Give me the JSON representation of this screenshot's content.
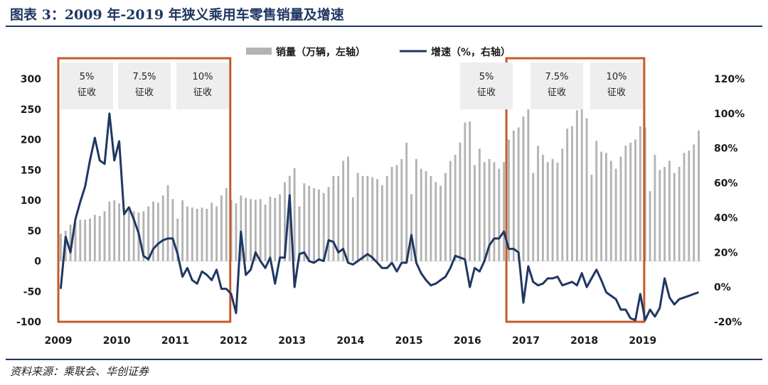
{
  "title": "图表 3：2009 年-2019 年狭义乘用车零售销量及增速",
  "source": "资料来源：乘联会、华创证券",
  "colors": {
    "bar": "#b3b3b3",
    "line": "#1f3763",
    "box": "#c55a2b",
    "ann_bg": "#eeeeee",
    "rule": "#1f3763"
  },
  "chart_data": {
    "type": "bar+line",
    "legend": [
      "销量（万辆，左轴）",
      "增速（%，右轴）"
    ],
    "x_labels": [
      "2009",
      "2010",
      "2011",
      "2012",
      "2013",
      "2014",
      "2015",
      "2016",
      "2017",
      "2018",
      "2019"
    ],
    "y_left": {
      "min": -100,
      "max": 300,
      "ticks": [
        "300",
        "250",
        "200",
        "150",
        "100",
        "50",
        "0",
        "-50",
        "-100"
      ]
    },
    "y_right": {
      "min": -20,
      "max": 120,
      "ticks": [
        "120%",
        "100%",
        "80%",
        "60%",
        "40%",
        "20%",
        "0%",
        "-20%"
      ]
    },
    "sales": [
      45,
      50,
      60,
      65,
      68,
      68,
      70,
      76,
      74,
      82,
      98,
      100,
      95,
      87,
      85,
      82,
      80,
      82,
      90,
      98,
      96,
      108,
      125,
      102,
      70,
      100,
      90,
      88,
      86,
      88,
      86,
      96,
      90,
      108,
      120,
      100,
      95,
      108,
      104,
      102,
      101,
      102,
      93,
      106,
      104,
      110,
      130,
      140,
      153,
      90,
      128,
      124,
      120,
      118,
      112,
      122,
      140,
      140,
      165,
      172,
      105,
      145,
      140,
      140,
      138,
      135,
      125,
      140,
      155,
      158,
      168,
      195,
      110,
      168,
      152,
      148,
      140,
      130,
      124,
      145,
      165,
      175,
      195,
      228,
      230,
      158,
      185,
      163,
      168,
      163,
      152,
      163,
      200,
      215,
      220,
      238,
      250,
      145,
      190,
      175,
      163,
      168,
      162,
      185,
      218,
      222,
      248,
      275,
      235,
      142,
      198,
      180,
      178,
      165,
      152,
      172,
      190,
      195,
      200,
      222,
      220,
      115,
      175,
      150,
      155,
      165,
      145,
      155,
      178,
      182,
      192,
      215
    ],
    "growth": [
      -1,
      29,
      20,
      39,
      49,
      58,
      73,
      86,
      73,
      71,
      100,
      73,
      84,
      42,
      46,
      39,
      31,
      18,
      16,
      22,
      25,
      27,
      28,
      28,
      19,
      6,
      11,
      4,
      2,
      9,
      7,
      4,
      10,
      -1,
      -1,
      -4,
      -15,
      32,
      7,
      10,
      20,
      15,
      11,
      17,
      2,
      17,
      17,
      53,
      0,
      19,
      20,
      15,
      14,
      16,
      15,
      27,
      26,
      20,
      22,
      14,
      13,
      15,
      17,
      19,
      17,
      14,
      11,
      11,
      14,
      9,
      14,
      14,
      30,
      14,
      8,
      4,
      1,
      2,
      4,
      6,
      11,
      18,
      17,
      16,
      0,
      11,
      9,
      15,
      24,
      28,
      28,
      32,
      22,
      22,
      20,
      -9,
      12,
      3,
      1,
      2,
      5,
      5,
      6,
      1,
      2,
      3,
      1,
      8,
      0,
      5,
      10,
      4,
      -3,
      -5,
      -7,
      -13,
      -13,
      -18,
      -19,
      -4,
      -19,
      -13,
      -17,
      -12,
      5,
      -6,
      -10,
      -7,
      -6,
      -5,
      -4,
      -3
    ],
    "annotations": [
      {
        "line1": "5%",
        "line2": "征收"
      },
      {
        "line1": "7.5%",
        "line2": "征收"
      },
      {
        "line1": "10%",
        "line2": "征收"
      },
      {
        "line1": "5%",
        "line2": "征收"
      },
      {
        "line1": "7.5%",
        "line2": "征收"
      },
      {
        "line1": "10%",
        "line2": "征收"
      }
    ]
  }
}
